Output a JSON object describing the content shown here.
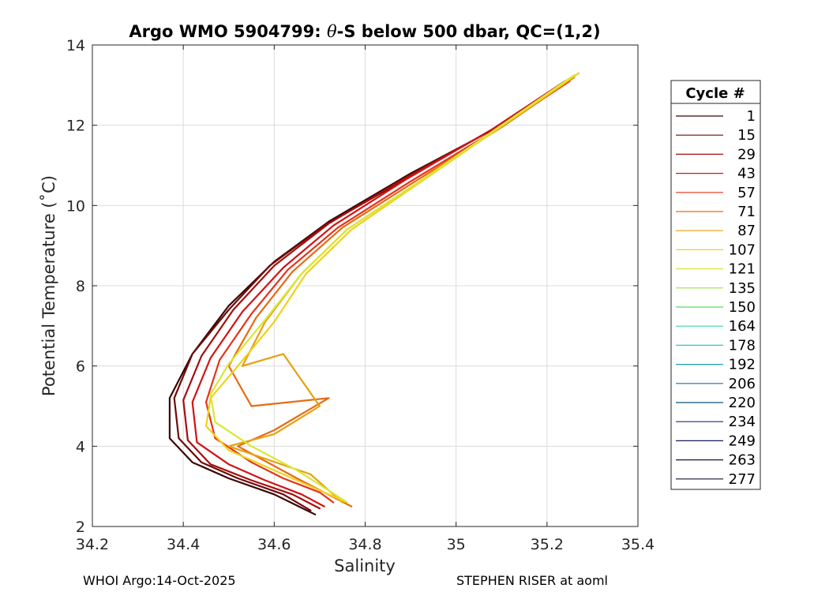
{
  "chart_data": {
    "type": "line",
    "title_prefix": "Argo WMO 5904799: ",
    "title_theta": "θ",
    "title_suffix": "-S below 500 dbar,  QC=(1,2)",
    "xlabel": "Salinity",
    "ylabel": "Potential Temperature (˚C)",
    "xlim": [
      34.2,
      35.4
    ],
    "ylim": [
      2,
      14
    ],
    "xticks": [
      34.2,
      34.4,
      34.6,
      34.8,
      35,
      35.2,
      35.4
    ],
    "xtick_labels": [
      "34.2",
      "34.4",
      "34.6",
      "34.8",
      "35",
      "35.2",
      "35.4"
    ],
    "yticks": [
      2,
      4,
      6,
      8,
      10,
      12,
      14
    ],
    "ytick_labels": [
      "2",
      "4",
      "6",
      "8",
      "10",
      "12",
      "14"
    ],
    "grid": true,
    "legend_title": "Cycle #",
    "legend_position": "right-outside",
    "legend": [
      {
        "label": "1",
        "color": "#3d0505"
      },
      {
        "label": "15",
        "color": "#6e0a0a"
      },
      {
        "label": "29",
        "color": "#a30f0f"
      },
      {
        "label": "43",
        "color": "#d11414"
      },
      {
        "label": "57",
        "color": "#e6331a"
      },
      {
        "label": "71",
        "color": "#e86a12"
      },
      {
        "label": "87",
        "color": "#e8a010"
      },
      {
        "label": "107",
        "color": "#f0d21a"
      },
      {
        "label": "121",
        "color": "#d8e832"
      },
      {
        "label": "135",
        "color": "#9be04a"
      },
      {
        "label": "150",
        "color": "#5fd65f"
      },
      {
        "label": "164",
        "color": "#3fd69a"
      },
      {
        "label": "178",
        "color": "#2ec8c0"
      },
      {
        "label": "192",
        "color": "#1aa0b0"
      },
      {
        "label": "206",
        "color": "#137a8f"
      },
      {
        "label": "220",
        "color": "#124f78"
      },
      {
        "label": "234",
        "color": "#1f2a72"
      },
      {
        "label": "249",
        "color": "#1b1a5c"
      },
      {
        "label": "263",
        "color": "#181344"
      },
      {
        "label": "277",
        "color": "#15102f"
      }
    ],
    "series": [
      {
        "name": "1",
        "color": "#3d0505",
        "salinity": [
          35.26,
          35.1,
          34.9,
          34.72,
          34.6,
          34.5,
          34.42,
          34.37,
          34.37,
          34.42,
          34.5,
          34.6,
          34.69
        ],
        "theta": [
          13.2,
          12.0,
          10.8,
          9.6,
          8.6,
          7.5,
          6.3,
          5.2,
          4.2,
          3.6,
          3.2,
          2.8,
          2.3
        ]
      },
      {
        "name": "15",
        "color": "#6e0a0a",
        "salinity": [
          35.24,
          35.08,
          34.88,
          34.71,
          34.59,
          34.5,
          34.42,
          34.38,
          34.39,
          34.44,
          34.52,
          34.62,
          34.68
        ],
        "theta": [
          13.1,
          11.9,
          10.6,
          9.5,
          8.5,
          7.4,
          6.3,
          5.2,
          4.2,
          3.6,
          3.2,
          2.8,
          2.4
        ]
      },
      {
        "name": "29",
        "color": "#a30f0f",
        "salinity": [
          35.25,
          35.09,
          34.89,
          34.72,
          34.6,
          34.51,
          34.44,
          34.4,
          34.41,
          34.46,
          34.55,
          34.64,
          34.7
        ],
        "theta": [
          13.15,
          11.95,
          10.7,
          9.55,
          8.5,
          7.4,
          6.25,
          5.15,
          4.15,
          3.55,
          3.15,
          2.8,
          2.45
        ]
      },
      {
        "name": "43",
        "color": "#d11414",
        "salinity": [
          35.24,
          35.08,
          34.89,
          34.73,
          34.62,
          34.53,
          34.46,
          34.42,
          34.43,
          34.5,
          34.58,
          34.66,
          34.71
        ],
        "theta": [
          13.1,
          11.9,
          10.65,
          9.5,
          8.45,
          7.35,
          6.2,
          5.1,
          4.1,
          3.55,
          3.15,
          2.8,
          2.5
        ]
      },
      {
        "name": "57",
        "color": "#e6331a",
        "salinity": [
          35.25,
          35.09,
          34.9,
          34.74,
          34.63,
          34.55,
          34.48,
          34.45,
          34.47,
          34.55,
          34.62,
          34.7,
          34.73
        ],
        "theta": [
          13.1,
          11.9,
          10.6,
          9.45,
          8.4,
          7.3,
          6.15,
          5.1,
          4.2,
          3.6,
          3.2,
          2.85,
          2.6
        ]
      },
      {
        "name": "71",
        "color": "#e86a12",
        "salinity": [
          35.26,
          35.1,
          34.91,
          34.75,
          34.64,
          34.56,
          34.5,
          34.55,
          34.72,
          34.6,
          34.52,
          34.65,
          34.77
        ],
        "theta": [
          13.2,
          11.95,
          10.6,
          9.45,
          8.35,
          7.2,
          6.0,
          5.0,
          5.2,
          4.4,
          4.0,
          3.2,
          2.5
        ]
      },
      {
        "name": "87",
        "color": "#e8a010",
        "salinity": [
          35.26,
          35.1,
          34.92,
          34.76,
          34.66,
          34.58,
          34.53,
          34.62,
          34.7,
          34.6,
          34.5,
          34.68,
          34.75
        ],
        "theta": [
          13.25,
          12.0,
          10.6,
          9.4,
          8.3,
          7.1,
          6.0,
          6.3,
          5.0,
          4.3,
          4.0,
          3.3,
          2.6
        ]
      },
      {
        "name": "107",
        "color": "#f0d21a",
        "salinity": [
          35.27,
          35.11,
          34.93,
          34.77,
          34.67,
          34.6,
          34.52,
          34.46,
          34.45,
          34.5,
          34.6,
          34.7,
          34.76
        ],
        "theta": [
          13.3,
          12.05,
          10.65,
          9.4,
          8.3,
          7.1,
          6.0,
          5.2,
          4.5,
          3.9,
          3.4,
          2.9,
          2.6
        ]
      },
      {
        "name": "121",
        "color": "#d8e832",
        "salinity": [
          35.26,
          35.1,
          34.92,
          34.76,
          34.66,
          34.58,
          34.5,
          34.46,
          34.47,
          34.55,
          34.65,
          34.72,
          34.76
        ],
        "theta": [
          13.25,
          12.0,
          10.6,
          9.4,
          8.3,
          7.15,
          6.05,
          5.3,
          4.6,
          4.0,
          3.4,
          2.9,
          2.6
        ]
      }
    ]
  },
  "footer": {
    "left": "WHOI Argo:14-Oct-2025",
    "right": "STEPHEN RISER at aoml"
  }
}
